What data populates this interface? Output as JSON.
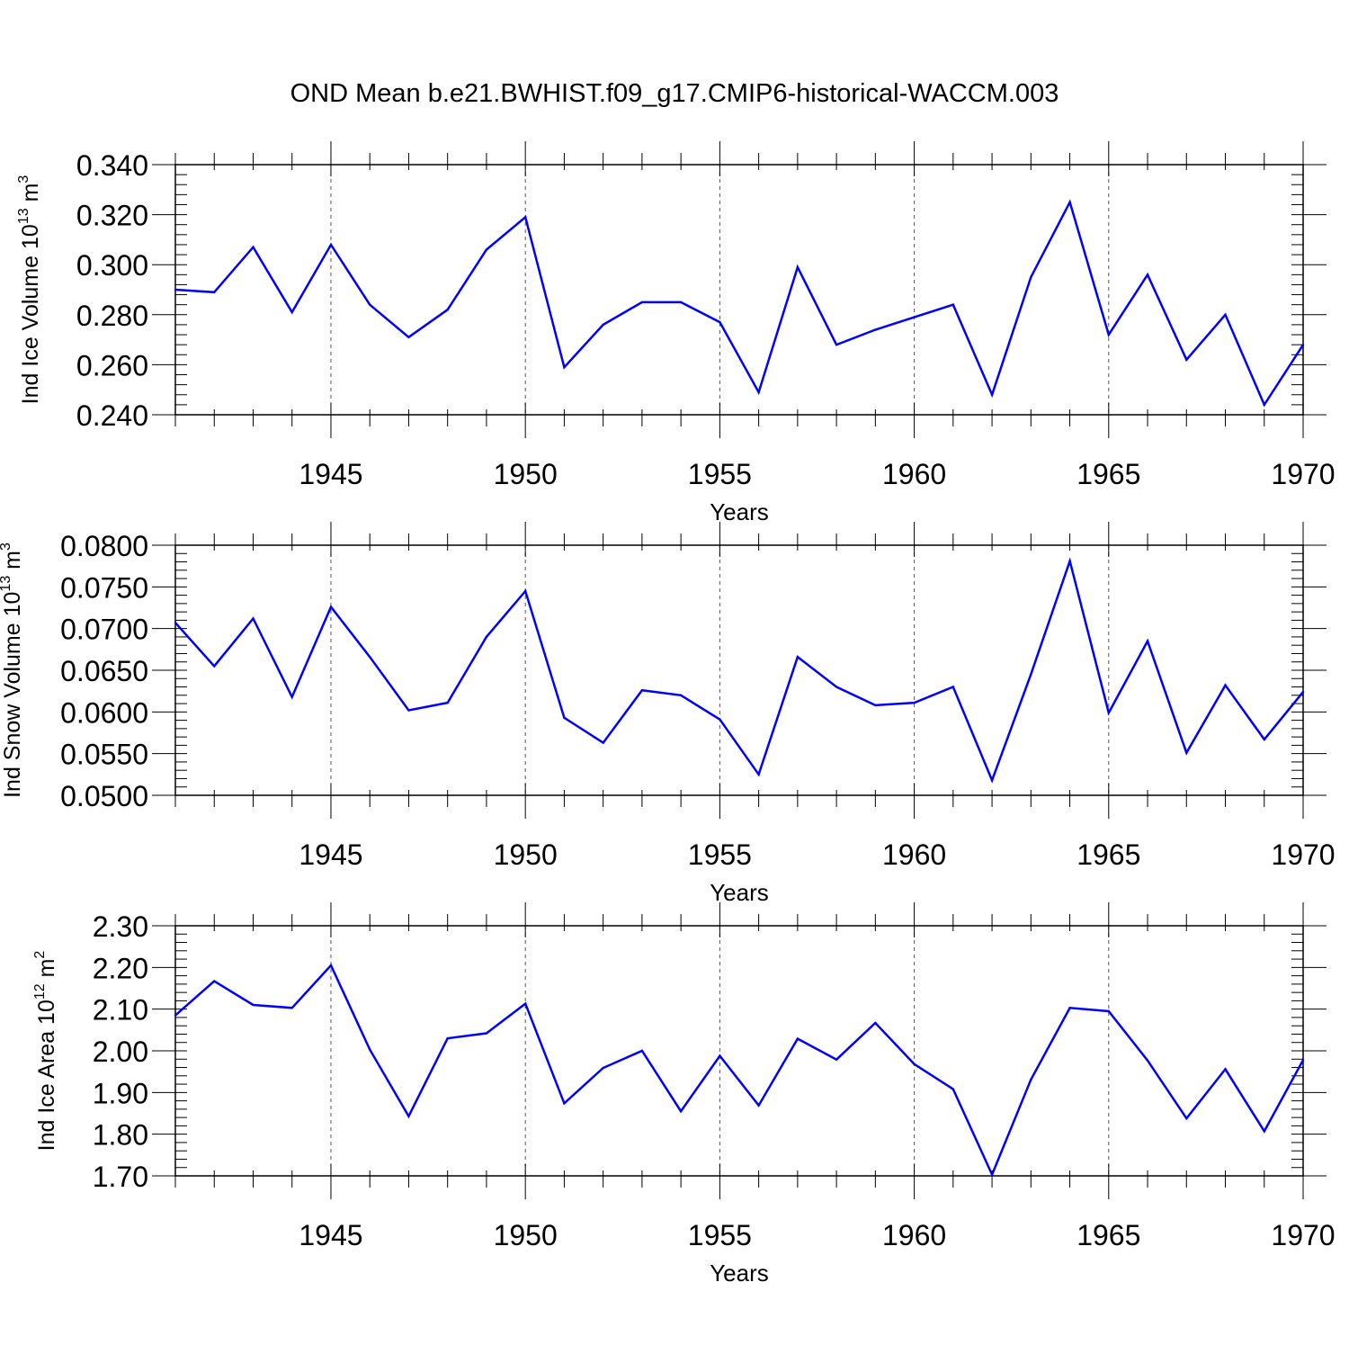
{
  "title": "OND Mean b.e21.BWHIST.f09_g17.CMIP6-historical-WACCM.003",
  "chart_data": [
    {
      "type": "line",
      "ylabel_main": "Ind Ice Volume 10",
      "ylabel_exp": "13",
      "ylabel_unit": " m",
      "ylabel_unit_exp": "3",
      "xlabel": "Years",
      "xlim": [
        1941,
        1970
      ],
      "ylim": [
        0.24,
        0.34
      ],
      "yticks": [
        "0.240",
        "0.260",
        "0.280",
        "0.300",
        "0.320",
        "0.340"
      ],
      "xticks": [
        "1945",
        "1950",
        "1955",
        "1960",
        "1965",
        "1970"
      ],
      "line_color": "#0000ff",
      "x": [
        1941,
        1942,
        1943,
        1944,
        1945,
        1946,
        1947,
        1948,
        1949,
        1950,
        1951,
        1952,
        1953,
        1954,
        1955,
        1956,
        1957,
        1958,
        1959,
        1960,
        1961,
        1962,
        1963,
        1964,
        1965,
        1966,
        1967,
        1968,
        1969,
        1970
      ],
      "values": [
        0.29,
        0.289,
        0.307,
        0.281,
        0.308,
        0.284,
        0.271,
        0.282,
        0.306,
        0.319,
        0.259,
        0.276,
        0.285,
        0.285,
        0.277,
        0.249,
        0.299,
        0.268,
        0.274,
        0.279,
        0.284,
        0.248,
        0.295,
        0.325,
        0.272,
        0.296,
        0.262,
        0.28,
        0.244,
        0.268
      ]
    },
    {
      "type": "line",
      "ylabel_main": "Ind Snow Volume 10",
      "ylabel_exp": "13",
      "ylabel_unit": " m",
      "ylabel_unit_exp": "3",
      "xlabel": "Years",
      "xlim": [
        1941,
        1970
      ],
      "ylim": [
        0.05,
        0.08
      ],
      "yticks": [
        "0.0500",
        "0.0550",
        "0.0600",
        "0.0650",
        "0.0700",
        "0.0750",
        "0.0800"
      ],
      "xticks": [
        "1945",
        "1950",
        "1955",
        "1960",
        "1965",
        "1970"
      ],
      "line_color": "#0000ff",
      "x": [
        1941,
        1942,
        1943,
        1944,
        1945,
        1946,
        1947,
        1948,
        1949,
        1950,
        1951,
        1952,
        1953,
        1954,
        1955,
        1956,
        1957,
        1958,
        1959,
        1960,
        1961,
        1962,
        1963,
        1964,
        1965,
        1966,
        1967,
        1968,
        1969,
        1970
      ],
      "values": [
        0.0707,
        0.0655,
        0.0712,
        0.0618,
        0.0726,
        0.0666,
        0.0602,
        0.0611,
        0.069,
        0.0745,
        0.0593,
        0.0563,
        0.0626,
        0.062,
        0.0591,
        0.0525,
        0.0666,
        0.063,
        0.0608,
        0.0611,
        0.063,
        0.0518,
        0.0645,
        0.0781,
        0.0599,
        0.0685,
        0.0551,
        0.0632,
        0.0567,
        0.0624
      ]
    },
    {
      "type": "line",
      "ylabel_main": "Ind Ice Area 10",
      "ylabel_exp": "12",
      "ylabel_unit": " m",
      "ylabel_unit_exp": "2",
      "xlabel": "Years",
      "xlim": [
        1941,
        1970
      ],
      "ylim": [
        1.7,
        2.3
      ],
      "yticks": [
        "1.70",
        "1.80",
        "1.90",
        "2.00",
        "2.10",
        "2.20",
        "2.30"
      ],
      "xticks": [
        "1945",
        "1950",
        "1955",
        "1960",
        "1965",
        "1970"
      ],
      "line_color": "#0000ff",
      "x": [
        1941,
        1942,
        1943,
        1944,
        1945,
        1946,
        1947,
        1948,
        1949,
        1950,
        1951,
        1952,
        1953,
        1954,
        1955,
        1956,
        1957,
        1958,
        1959,
        1960,
        1961,
        1962,
        1963,
        1964,
        1965,
        1966,
        1967,
        1968,
        1969,
        1970
      ],
      "values": [
        2.085,
        2.167,
        2.11,
        2.103,
        2.205,
        2.003,
        1.843,
        2.03,
        2.042,
        2.113,
        1.874,
        1.959,
        2.0,
        1.855,
        1.988,
        1.869,
        2.029,
        1.979,
        2.067,
        1.968,
        1.908,
        1.703,
        1.931,
        2.103,
        2.095,
        1.977,
        1.838,
        1.956,
        1.807,
        1.978
      ]
    }
  ]
}
